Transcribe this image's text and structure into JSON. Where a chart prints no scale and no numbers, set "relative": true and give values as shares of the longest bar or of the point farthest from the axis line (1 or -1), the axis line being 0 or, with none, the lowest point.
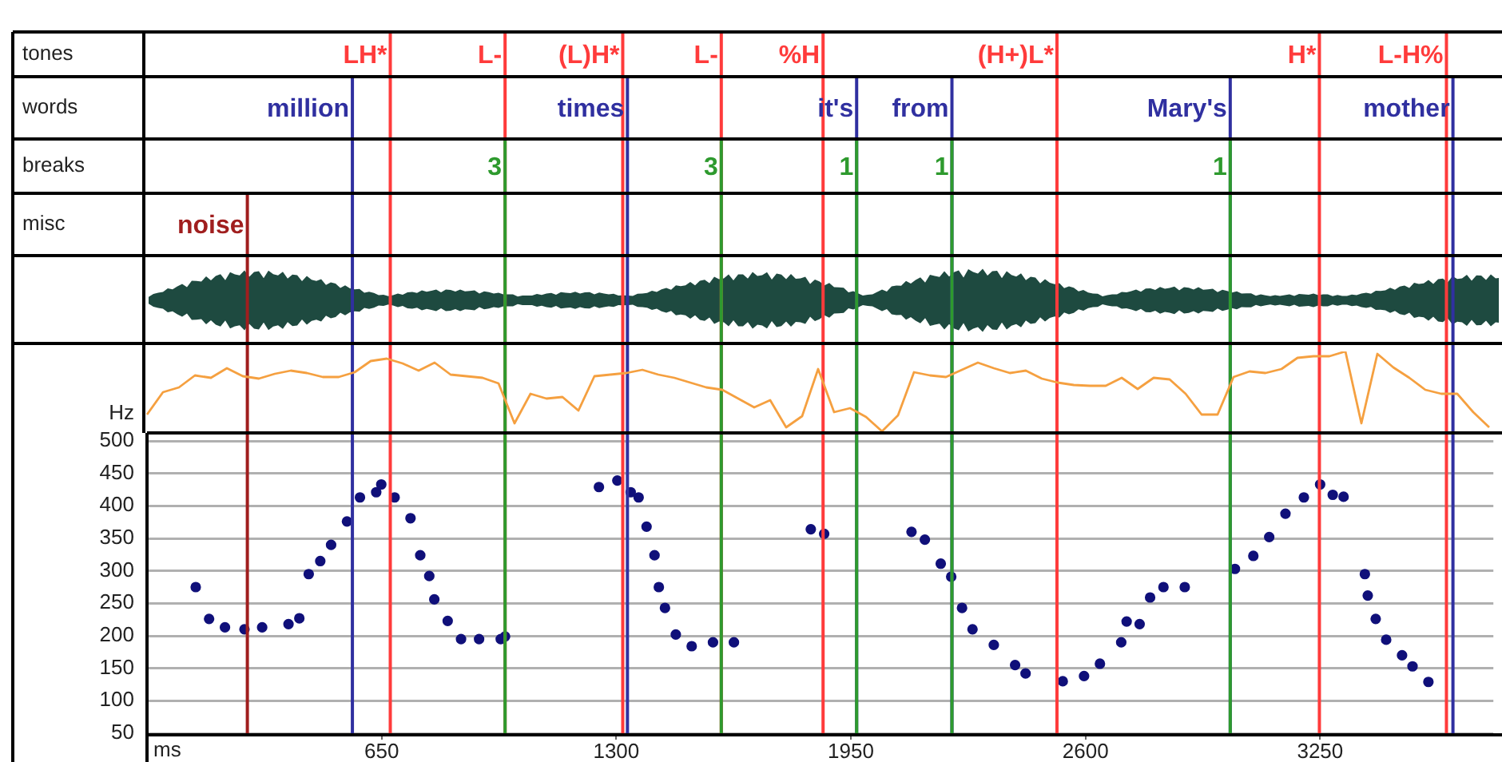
{
  "chart_data": [
    {
      "type": "line",
      "relative": true,
      "marker": "none",
      "line_style": "solid",
      "categories": [
        null,
        null,
        null,
        null,
        null,
        null,
        null,
        null,
        null,
        null,
        null,
        null,
        null,
        null,
        null,
        null,
        null,
        null,
        null,
        null,
        null,
        null,
        null,
        null,
        null,
        null,
        null,
        null,
        null,
        null,
        null,
        null,
        null,
        null,
        null,
        null,
        null,
        null,
        null,
        null,
        null,
        null,
        null,
        null,
        null,
        null,
        null,
        null,
        null,
        null,
        null,
        null,
        null,
        null,
        null,
        null,
        null,
        null,
        null,
        null,
        null,
        null,
        null,
        null,
        null,
        null,
        null,
        null,
        null,
        null,
        null,
        null,
        null,
        null,
        null,
        null,
        null,
        null,
        null,
        null,
        null,
        null,
        null,
        null,
        null
      ],
      "series": [
        {
          "color": "#f5a040",
          "values": [
            0.21,
            0.49,
            0.55,
            0.7,
            0.67,
            0.79,
            0.69,
            0.66,
            0.72,
            0.76,
            0.73,
            0.68,
            0.68,
            0.74,
            0.88,
            0.91,
            0.85,
            0.76,
            0.86,
            0.71,
            0.69,
            0.67,
            0.6,
            0.1,
            0.47,
            0.41,
            0.43,
            0.26,
            0.69,
            0.71,
            0.73,
            0.77,
            0.71,
            0.67,
            0.61,
            0.55,
            0.52,
            0.41,
            0.3,
            0.39,
            0.05,
            0.19,
            0.78,
            0.24,
            0.29,
            0.18,
            0,
            0.2,
            0.74,
            0.7,
            0.68,
            0.77,
            0.86,
            0.79,
            0.73,
            0.76,
            0.66,
            0.61,
            0.58,
            0.57,
            0.57,
            0.67,
            0.53,
            0.67,
            0.65,
            0.47,
            0.21,
            0.21,
            0.68,
            0.75,
            0.73,
            0.78,
            0.92,
            0.94,
            0.94,
            1,
            0.1,
            0.97,
            0.8,
            0.67,
            0.52,
            0.47,
            0.47,
            0.24,
            0.05
          ]
        }
      ]
    },
    {
      "type": "scatter",
      "xlabel": "ms",
      "ylabel": "Hz",
      "annotations": [
        "tones",
        "words",
        "breaks",
        "misc",
        "3",
        "3",
        "1",
        "1",
        "1"
      ],
      "xlim": [
        0,
        3730
      ],
      "ylim": [
        50,
        500
      ],
      "xticks": [
        650,
        1300,
        1950,
        2600,
        3250
      ],
      "yticks": [
        50,
        100,
        150,
        200,
        250,
        300,
        350,
        400,
        450,
        500
      ],
      "grid": "y",
      "marker": "circle",
      "legend": false,
      "series": [
        {
          "color": "#10107a",
          "x": [
            135,
            172,
            216,
            270,
            319,
            392,
            422,
            448,
            480,
            510,
            554,
            590,
            635,
            649,
            686,
            730,
            757,
            782,
            796,
            833,
            870,
            920,
            980,
            992,
            1252,
            1303,
            1340,
            1362,
            1384,
            1406,
            1418,
            1435,
            1465,
            1509,
            1568,
            1626,
            1839,
            1876,
            2118,
            2155,
            2199,
            2228,
            2258,
            2287,
            2346,
            2405,
            2434,
            2537,
            2596,
            2640,
            2699,
            2714,
            2750,
            2779,
            2816,
            2875,
            3014,
            3065,
            3109,
            3154,
            3205,
            3250,
            3285,
            3315,
            3374,
            3382,
            3404,
            3433,
            3477,
            3506,
            3550
          ],
          "values": [
            275,
            226,
            213,
            210,
            213,
            218,
            227,
            295,
            315,
            340,
            376,
            413,
            421,
            433,
            413,
            381,
            324,
            292,
            256,
            223,
            195,
            195,
            195,
            199,
            429,
            439,
            421,
            413,
            368,
            324,
            275,
            243,
            202,
            184,
            190,
            190,
            364,
            357,
            360,
            348,
            311,
            291,
            243,
            210,
            186,
            155,
            142,
            130,
            138,
            157,
            190,
            222,
            218,
            259,
            275,
            275,
            303,
            323,
            352,
            388,
            413,
            433,
            417,
            414,
            295,
            262,
            226,
            194,
            170,
            153,
            129
          ]
        }
      ],
      "ref_lines": [
        {
          "axis": "x",
          "value": 674,
          "label": "LH*",
          "color": "#ff3b3b"
        },
        {
          "axis": "x",
          "value": 992,
          "label": "L-",
          "color": "#ff3b3b"
        },
        {
          "axis": "x",
          "value": 1318,
          "label": "(L)H*",
          "color": "#ff3b3b"
        },
        {
          "axis": "x",
          "value": 1591,
          "label": "L-",
          "color": "#ff3b3b"
        },
        {
          "axis": "x",
          "value": 1873,
          "label": "%H",
          "color": "#ff3b3b"
        },
        {
          "axis": "x",
          "value": 2521,
          "label": "(H+)L*",
          "color": "#ff3b3b"
        },
        {
          "axis": "x",
          "value": 3248,
          "label": "H*",
          "color": "#ff3b3b"
        },
        {
          "axis": "x",
          "value": 3600,
          "label": "L-H%",
          "color": "#ff3b3b"
        },
        {
          "axis": "x",
          "value": 569,
          "label": "million",
          "color": "#3030a0"
        },
        {
          "axis": "x",
          "value": 1331,
          "label": "times",
          "color": "#3030a0"
        },
        {
          "axis": "x",
          "value": 1966,
          "label": "it's",
          "color": "#3030a0"
        },
        {
          "axis": "x",
          "value": 2230,
          "label": "from",
          "color": "#3030a0"
        },
        {
          "axis": "x",
          "value": 3001,
          "label": "Mary's",
          "color": "#3030a0"
        },
        {
          "axis": "x",
          "value": 3618,
          "label": "mother",
          "color": "#3030a0"
        },
        {
          "axis": "x",
          "value": 992,
          "color": "#2e9a2e"
        },
        {
          "axis": "x",
          "value": 1591,
          "color": "#2e9a2e"
        },
        {
          "axis": "x",
          "value": 1966,
          "color": "#2e9a2e"
        },
        {
          "axis": "x",
          "value": 2230,
          "color": "#2e9a2e"
        },
        {
          "axis": "x",
          "value": 3001,
          "color": "#2e9a2e"
        },
        {
          "axis": "x",
          "value": 278,
          "label": "noise",
          "color": "#a01e1e"
        }
      ]
    }
  ]
}
